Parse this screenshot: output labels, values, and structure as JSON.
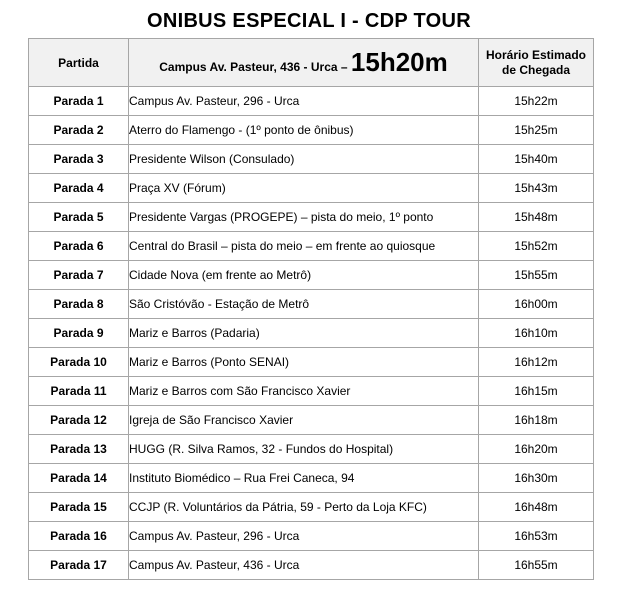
{
  "title": "ONIBUS ESPECIAL I - CDP TOUR",
  "colors": {
    "header_bg": "#f1f1f1",
    "border": "#a6a6a6",
    "text": "#000000"
  },
  "table": {
    "header": {
      "departure_col": "Partida",
      "route_prefix": "Campus Av. Pasteur, 436 - Urca – ",
      "departure_time": "15h20m",
      "arrival_col": "Horário Estimado de Chegada"
    },
    "rows": [
      {
        "stop": "Parada 1",
        "location": "Campus Av. Pasteur, 296 - Urca",
        "time": "15h22m"
      },
      {
        "stop": "Parada 2",
        "location": "Aterro do Flamengo - (1º ponto de ônibus)",
        "time": "15h25m"
      },
      {
        "stop": "Parada 3",
        "location": "Presidente Wilson (Consulado)",
        "time": "15h40m"
      },
      {
        "stop": "Parada 4",
        "location": "Praça XV (Fórum)",
        "time": "15h43m"
      },
      {
        "stop": "Parada 5",
        "location": "Presidente Vargas (PROGEPE) – pista do meio, 1º ponto",
        "time": "15h48m"
      },
      {
        "stop": "Parada 6",
        "location": "Central do Brasil – pista do meio – em frente ao quiosque",
        "time": "15h52m"
      },
      {
        "stop": "Parada 7",
        "location": "Cidade Nova (em frente ao Metrô)",
        "time": "15h55m"
      },
      {
        "stop": "Parada 8",
        "location": "São Cristóvão - Estação de Metrô",
        "time": "16h00m"
      },
      {
        "stop": "Parada 9",
        "location": "Mariz e Barros (Padaria)",
        "time": "16h10m"
      },
      {
        "stop": "Parada 10",
        "location": "Mariz e Barros (Ponto SENAI)",
        "time": "16h12m"
      },
      {
        "stop": "Parada 11",
        "location": "Mariz e Barros com São Francisco Xavier",
        "time": "16h15m"
      },
      {
        "stop": "Parada 12",
        "location": "Igreja de São Francisco Xavier",
        "time": "16h18m"
      },
      {
        "stop": "Parada 13",
        "location": "HUGG (R. Silva Ramos, 32 - Fundos do Hospital)",
        "time": "16h20m"
      },
      {
        "stop": "Parada 14",
        "location": "Instituto Biomédico – Rua Frei Caneca, 94",
        "time": "16h30m"
      },
      {
        "stop": "Parada 15",
        "location": "CCJP (R. Voluntários da Pátria, 59 - Perto da Loja KFC)",
        "time": "16h48m"
      },
      {
        "stop": "Parada 16",
        "location": "Campus Av. Pasteur, 296 - Urca",
        "time": "16h53m"
      },
      {
        "stop": "Parada 17",
        "location": "Campus Av. Pasteur, 436 - Urca",
        "time": "16h55m"
      }
    ]
  }
}
